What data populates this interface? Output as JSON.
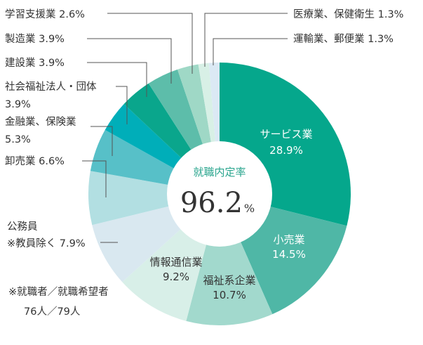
{
  "chart_data": {
    "type": "pie",
    "center": {
      "title": "就職内定率",
      "value": "96.2",
      "unit": "%"
    },
    "slices": [
      {
        "key": "service",
        "label": "サービス業",
        "value": 28.9,
        "value_text": "28.9%",
        "color": "#05a78c"
      },
      {
        "key": "retail",
        "label": "小売業",
        "value": 14.5,
        "value_text": "14.5%",
        "color": "#4fb7a6"
      },
      {
        "key": "welfare",
        "label": "福祉系企業",
        "value": 10.7,
        "value_text": "10.7%",
        "color": "#a2d9cd"
      },
      {
        "key": "infocom",
        "label": "情報通信業",
        "value": 9.2,
        "value_text": "9.2%",
        "color": "#d8efe8"
      },
      {
        "key": "public",
        "label": "公務員\n※教員除く 7.9%",
        "value": 7.9,
        "color": "#d9e8f0"
      },
      {
        "key": "wholesale",
        "label": "卸売業 6.6%",
        "value": 6.6,
        "color": "#b2dfe2"
      },
      {
        "key": "finance",
        "label": "金融業、保険業\n5.3%",
        "value": 5.3,
        "color": "#57c0c8"
      },
      {
        "key": "social",
        "label": "社会福祉法人・団体\n3.9%",
        "value": 3.9,
        "color": "#00aeb9"
      },
      {
        "key": "construct",
        "label": "建設業 3.9%",
        "value": 3.9,
        "color": "#0aa68c"
      },
      {
        "key": "mfg",
        "label": "製造業 3.9%",
        "value": 3.9,
        "color": "#5dbdaa"
      },
      {
        "key": "learning",
        "label": "学習支援業 2.6%",
        "value": 2.6,
        "color": "#9fd8c6"
      },
      {
        "key": "medical",
        "label": "医療業、保健衛生 1.3%",
        "value": 1.3,
        "color": "#d8f0e6"
      },
      {
        "key": "transport",
        "label": "運輸業、郵便業 1.3%",
        "value": 1.3,
        "color": "#dbe9f4"
      }
    ]
  },
  "note": {
    "line1": "※就職者／就職希望者",
    "line2": "76人／79人"
  }
}
